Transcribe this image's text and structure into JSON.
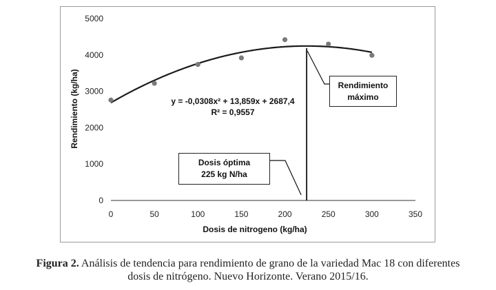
{
  "chart_data": {
    "type": "scatter",
    "xlabel": "Dosis de nitrogeno (kg/ha)",
    "ylabel": "Rendimiento (kg/ha)",
    "xlim": [
      0,
      350
    ],
    "ylim": [
      0,
      5000
    ],
    "x_ticks": [
      "0",
      "50",
      "100",
      "150",
      "200",
      "250",
      "300",
      "350"
    ],
    "y_ticks": [
      "0",
      "1000",
      "2000",
      "3000",
      "4000",
      "5000"
    ],
    "grid": false,
    "points": [
      {
        "x": 0,
        "y": 2760
      },
      {
        "x": 50,
        "y": 3220
      },
      {
        "x": 100,
        "y": 3740
      },
      {
        "x": 150,
        "y": 3920
      },
      {
        "x": 200,
        "y": 4420
      },
      {
        "x": 250,
        "y": 4300
      },
      {
        "x": 300,
        "y": 3990
      }
    ],
    "trendline": {
      "type": "polynomial",
      "a": -0.0308,
      "b": 13.859,
      "c": 2687.4,
      "x_range": [
        0,
        300
      ]
    },
    "equation_text": "y = -0,0308x² + 13,859x + 2687,4",
    "r2_text": "R² = 0,9557",
    "optimum_x": 225,
    "annotations": {
      "max_label_1": "Rendimiento",
      "max_label_2": "máximo",
      "dose_label_1": "Dosis óptima",
      "dose_label_2": "225 kg N/ha"
    }
  },
  "caption": {
    "label": "Figura 2.",
    "line1": " Análisis de tendencia para rendimiento de grano de la variedad Mac 18 con diferentes",
    "line2": "dosis de nitrógeno. Nuevo Horizonte. Verano 2015/16."
  }
}
